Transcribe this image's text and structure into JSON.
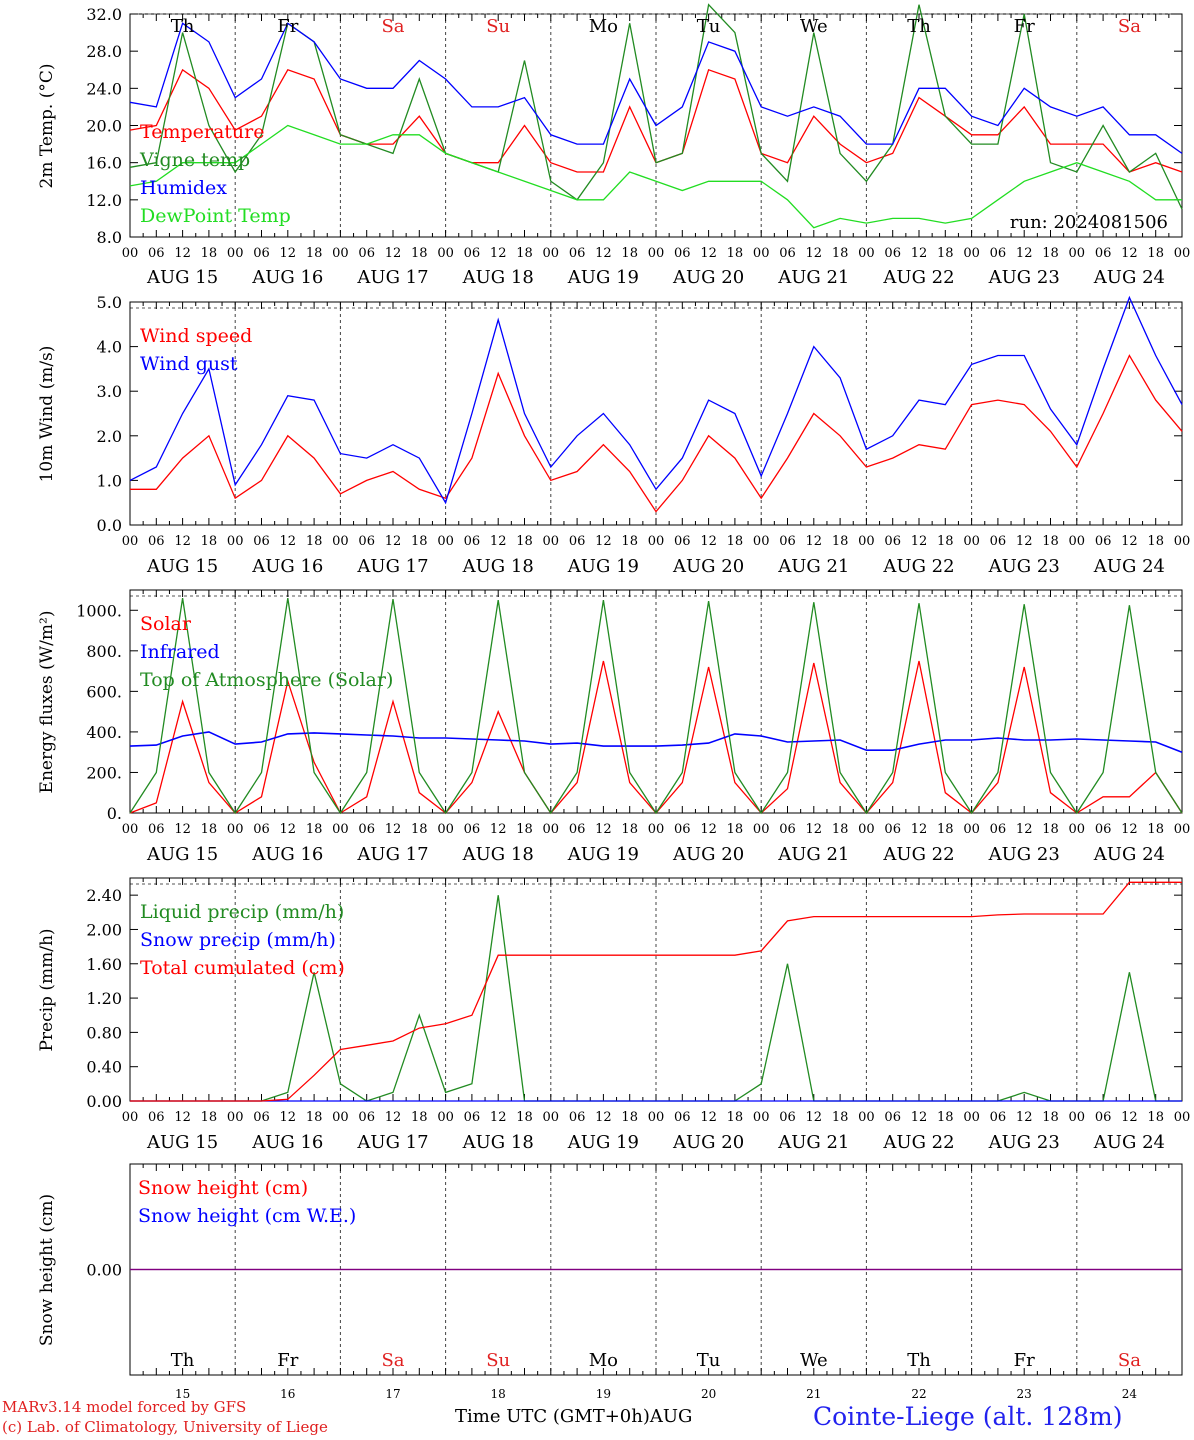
{
  "run_label": "run: 2024081506",
  "hour_ticks": [
    "00",
    "06",
    "12",
    "18"
  ],
  "end_tick": "00",
  "dates": [
    "AUG 15",
    "AUG 16",
    "AUG 17",
    "AUG 18",
    "AUG 19",
    "AUG 20",
    "AUG 21",
    "AUG 22",
    "AUG 23",
    "AUG 24"
  ],
  "weekdays": [
    "Th",
    "Fr",
    "Sa",
    "Su",
    "Mo",
    "Tu",
    "We",
    "Th",
    "Fr",
    "Sa"
  ],
  "weekday_colors": [
    "#000000",
    "#000000",
    "#e02020",
    "#e02020",
    "#000000",
    "#000000",
    "#000000",
    "#000000",
    "#000000",
    "#e02020"
  ],
  "day_numbers": [
    "15",
    "16",
    "17",
    "18",
    "19",
    "20",
    "21",
    "22",
    "23",
    "24"
  ],
  "footer": {
    "model": "MARv3.14 model forced by GFS",
    "credit": "(c) Lab. of Climatology, University of Liege",
    "time_label": "Time UTC (GMT+0h)",
    "month": "AUG",
    "station": "Cointe-Liege (alt. 128m)"
  },
  "colors": {
    "red": "#ff0000",
    "blue": "#0000ff",
    "green": "#228b22",
    "light_green": "#22dd22",
    "purple": "#800080"
  },
  "chart_data": [
    {
      "type": "line",
      "ylabel": "2m Temp. (°C)",
      "ylim": [
        8,
        32
      ],
      "yticks": [
        "8.0",
        "12.0",
        "16.0",
        "20.0",
        "24.0",
        "28.0",
        "32.0"
      ],
      "grid": "dashed vertical at 00h, dashed horizontal at top",
      "x_hours": [
        0,
        6,
        12,
        18,
        24,
        30,
        36,
        42,
        48,
        54,
        60,
        66,
        72,
        78,
        84,
        90,
        96,
        102,
        108,
        114,
        120,
        126,
        132,
        138,
        144,
        150,
        156,
        162,
        168,
        174,
        180,
        186,
        192,
        198,
        204,
        210,
        216,
        222,
        228,
        234,
        240
      ],
      "series": [
        {
          "name": "Temperature",
          "color": "#ff0000",
          "values": [
            19.5,
            20,
            26,
            24,
            19.5,
            21,
            26,
            25,
            19,
            18,
            18,
            21,
            17,
            16,
            16,
            20,
            16,
            15,
            15,
            22,
            16,
            17,
            26,
            25,
            17,
            16,
            21,
            18,
            16,
            17,
            23,
            21,
            19,
            19,
            22,
            18,
            18,
            18,
            15,
            16,
            15
          ]
        },
        {
          "name": "Vigne temp",
          "color": "#228b22",
          "values": [
            15.5,
            16,
            30,
            20,
            15,
            19,
            31,
            29,
            19,
            18,
            17,
            25,
            17,
            16,
            15,
            27,
            14,
            12,
            16,
            31,
            16,
            17,
            33,
            30,
            17,
            14,
            30,
            17,
            14,
            18,
            33,
            21,
            18,
            18,
            32,
            16,
            15,
            20,
            15,
            17,
            11
          ]
        },
        {
          "name": "Humidex",
          "color": "#0000ff",
          "values": [
            22.5,
            22,
            31,
            29,
            23,
            25,
            31,
            29,
            25,
            24,
            24,
            27,
            25,
            22,
            22,
            23,
            19,
            18,
            18,
            25,
            20,
            22,
            29,
            28,
            22,
            21,
            22,
            21,
            18,
            18,
            24,
            24,
            21,
            20,
            24,
            22,
            21,
            22,
            19,
            19,
            17
          ]
        },
        {
          "name": "DewPoint Temp",
          "color": "#22dd22",
          "values": [
            13.5,
            14,
            16,
            16,
            16,
            18,
            20,
            19,
            18,
            18,
            19,
            19,
            17,
            16,
            15,
            14,
            13,
            12,
            12,
            15,
            14,
            13,
            14,
            14,
            14,
            12,
            9,
            10,
            9.5,
            10,
            10,
            9.5,
            10,
            12,
            14,
            15,
            16,
            15,
            14,
            12,
            12
          ]
        }
      ]
    },
    {
      "type": "line",
      "ylabel": "10m Wind (m/s)",
      "ylim": [
        0,
        5
      ],
      "yticks": [
        "0.0",
        "1.0",
        "2.0",
        "3.0",
        "4.0",
        "5.0"
      ],
      "x_hours": [
        0,
        6,
        12,
        18,
        24,
        30,
        36,
        42,
        48,
        54,
        60,
        66,
        72,
        78,
        84,
        90,
        96,
        102,
        108,
        114,
        120,
        126,
        132,
        138,
        144,
        150,
        156,
        162,
        168,
        174,
        180,
        186,
        192,
        198,
        204,
        210,
        216,
        222,
        228,
        234,
        240
      ],
      "series": [
        {
          "name": "Wind speed",
          "color": "#ff0000",
          "values": [
            0.8,
            0.8,
            1.5,
            2,
            0.6,
            1,
            2,
            1.5,
            0.7,
            1,
            1.2,
            0.8,
            0.6,
            1.5,
            3.4,
            2,
            1,
            1.2,
            1.8,
            1.2,
            0.3,
            1,
            2,
            1.5,
            0.6,
            1.5,
            2.5,
            2,
            1.3,
            1.5,
            1.8,
            1.7,
            2.7,
            2.8,
            2.7,
            2.1,
            1.3,
            2.5,
            3.8,
            2.8,
            2.1
          ]
        },
        {
          "name": "Wind gust",
          "color": "#0000ff",
          "values": [
            1,
            1.3,
            2.5,
            3.5,
            0.9,
            1.8,
            2.9,
            2.8,
            1.6,
            1.5,
            1.8,
            1.5,
            0.5,
            2.5,
            4.6,
            2.5,
            1.3,
            2,
            2.5,
            1.8,
            0.8,
            1.5,
            2.8,
            2.5,
            1.1,
            2.5,
            4,
            3.3,
            1.7,
            2,
            2.8,
            2.7,
            3.6,
            3.8,
            3.8,
            2.6,
            1.8,
            3.5,
            5.1,
            3.8,
            2.7
          ]
        }
      ]
    },
    {
      "type": "line",
      "ylabel": "Energy fluxes (W/m²)",
      "ylim": [
        0,
        1100
      ],
      "yticks": [
        "0.",
        "200.",
        "400.",
        "600.",
        "800.",
        "1000."
      ],
      "x_hours": [
        0,
        6,
        12,
        18,
        24,
        30,
        36,
        42,
        48,
        54,
        60,
        66,
        72,
        78,
        84,
        90,
        96,
        102,
        108,
        114,
        120,
        126,
        132,
        138,
        144,
        150,
        156,
        162,
        168,
        174,
        180,
        186,
        192,
        198,
        204,
        210,
        216,
        222,
        228,
        234,
        240
      ],
      "series": [
        {
          "name": "Solar",
          "color": "#ff0000",
          "values": [
            0,
            50,
            550,
            150,
            0,
            80,
            650,
            250,
            0,
            80,
            550,
            100,
            0,
            150,
            500,
            200,
            0,
            150,
            750,
            150,
            0,
            150,
            720,
            150,
            0,
            120,
            740,
            150,
            0,
            150,
            750,
            100,
            0,
            150,
            720,
            100,
            0,
            80,
            80,
            200,
            0
          ]
        },
        {
          "name": "Infrared",
          "color": "#0000ff",
          "values": [
            330,
            335,
            380,
            400,
            340,
            350,
            390,
            395,
            390,
            385,
            380,
            370,
            370,
            365,
            360,
            355,
            340,
            345,
            330,
            330,
            330,
            335,
            345,
            390,
            380,
            350,
            355,
            360,
            310,
            310,
            340,
            360,
            360,
            370,
            360,
            360,
            365,
            360,
            355,
            350,
            300
          ]
        },
        {
          "name": "Top of Atmosphere (Solar)",
          "color": "#228b22",
          "values": [
            0,
            200,
            1060,
            200,
            0,
            200,
            1060,
            200,
            0,
            200,
            1055,
            200,
            0,
            200,
            1050,
            200,
            0,
            200,
            1050,
            200,
            0,
            200,
            1045,
            200,
            0,
            200,
            1040,
            200,
            0,
            200,
            1035,
            200,
            0,
            200,
            1030,
            200,
            0,
            200,
            1025,
            200,
            0
          ]
        }
      ]
    },
    {
      "type": "line",
      "ylabel": "Precip (mm/h)",
      "ylim": [
        0,
        2.6
      ],
      "yticks": [
        "0.00",
        "0.40",
        "0.80",
        "1.20",
        "1.60",
        "2.00",
        "2.40"
      ],
      "x_hours": [
        0,
        6,
        12,
        18,
        24,
        30,
        36,
        42,
        48,
        54,
        60,
        66,
        72,
        78,
        84,
        90,
        96,
        102,
        108,
        114,
        120,
        126,
        132,
        138,
        144,
        150,
        156,
        162,
        168,
        174,
        180,
        186,
        192,
        198,
        204,
        210,
        216,
        222,
        228,
        234,
        240
      ],
      "series": [
        {
          "name": "Liquid precip (mm/h)",
          "color": "#228b22",
          "values": [
            0,
            0,
            0,
            0,
            0,
            0,
            0.1,
            1.5,
            0.2,
            0,
            0.1,
            1.0,
            0.1,
            0.2,
            2.4,
            0,
            0,
            0,
            0,
            0,
            0,
            0,
            0,
            0,
            0.2,
            1.6,
            0,
            0,
            0,
            0,
            0,
            0,
            0,
            0,
            0.1,
            0,
            0,
            0,
            1.5,
            0,
            0
          ]
        },
        {
          "name": "Snow precip (mm/h)",
          "color": "#0000ff",
          "values": [
            0,
            0,
            0,
            0,
            0,
            0,
            0,
            0,
            0,
            0,
            0,
            0,
            0,
            0,
            0,
            0,
            0,
            0,
            0,
            0,
            0,
            0,
            0,
            0,
            0,
            0,
            0,
            0,
            0,
            0,
            0,
            0,
            0,
            0,
            0,
            0,
            0,
            0,
            0,
            0,
            0
          ]
        },
        {
          "name": "Total cumulated (cm)",
          "color": "#ff0000",
          "values": [
            0,
            0,
            0,
            0,
            0,
            0,
            0.02,
            0.3,
            0.6,
            0.65,
            0.7,
            0.85,
            0.9,
            1.0,
            1.7,
            1.7,
            1.7,
            1.7,
            1.7,
            1.7,
            1.7,
            1.7,
            1.7,
            1.7,
            1.75,
            2.1,
            2.15,
            2.15,
            2.15,
            2.15,
            2.15,
            2.15,
            2.15,
            2.17,
            2.18,
            2.18,
            2.18,
            2.18,
            2.55,
            2.55,
            2.55
          ]
        }
      ]
    },
    {
      "type": "line",
      "ylabel": "Snow height (cm)",
      "ylim": [
        -1,
        1
      ],
      "yticks": [
        "0.00"
      ],
      "x_hours": [
        0,
        240
      ],
      "series": [
        {
          "name": "Snow height (cm)",
          "color": "#ff0000",
          "values": [
            0,
            0
          ]
        },
        {
          "name": "Snow height (cm W.E.)",
          "color": "#0000ff",
          "values": [
            0,
            0
          ]
        }
      ],
      "overlap_color": "#800080"
    }
  ]
}
